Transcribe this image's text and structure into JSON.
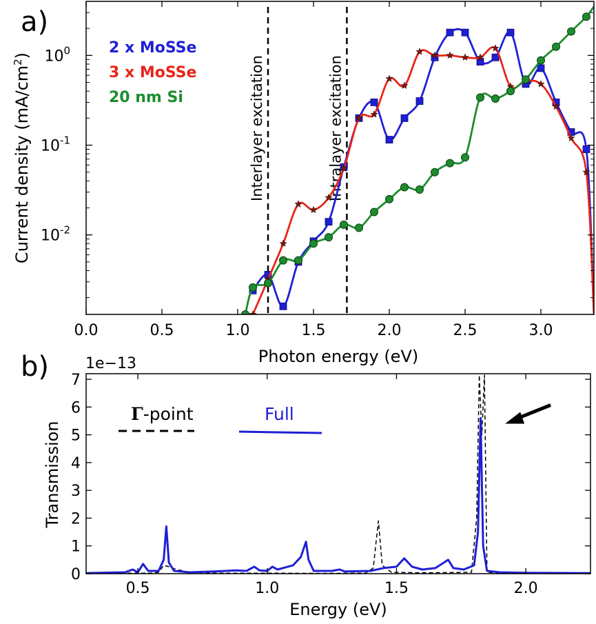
{
  "chart_data": [
    {
      "panel": "a)",
      "type": "line",
      "xlabel": "Photon energy (eV)",
      "ylabel": "Current density (mA/cm",
      "ylabel_sup": "2",
      "ylabel_end": ")",
      "xlim": [
        0.0,
        3.35
      ],
      "ylim": [
        0.0013,
        4.0
      ],
      "yscale": "log",
      "x_ticks": [
        "0.0",
        "0.5",
        "1.0",
        "1.5",
        "2.0",
        "2.5",
        "3.0"
      ],
      "y_ticks": [
        {
          "value": 0.01,
          "base": "10",
          "exp": "-2"
        },
        {
          "value": 0.1,
          "base": "10",
          "exp": "-1"
        },
        {
          "value": 1,
          "base": "10",
          "exp": "0"
        }
      ],
      "legend_position": "top-left",
      "annotations": [
        {
          "x": 1.2,
          "label": "Interlayer excitation"
        },
        {
          "x": 1.72,
          "label": "Intralayer excitation"
        }
      ],
      "series": [
        {
          "name": "2 x MoSSe",
          "color": "#1f1fd6",
          "marker": "square",
          "points": [
            [
              1.1,
              0.0024
            ],
            [
              1.2,
              0.0036
            ],
            [
              1.3,
              0.0016
            ],
            [
              1.4,
              0.005
            ],
            [
              1.5,
              0.0085
            ],
            [
              1.6,
              0.014
            ],
            [
              1.7,
              0.057
            ],
            [
              1.8,
              0.2
            ],
            [
              1.9,
              0.3
            ],
            [
              2.0,
              0.115
            ],
            [
              2.1,
              0.2
            ],
            [
              2.2,
              0.31
            ],
            [
              2.3,
              0.95
            ],
            [
              2.4,
              1.8
            ],
            [
              2.5,
              1.8
            ],
            [
              2.6,
              0.85
            ],
            [
              2.7,
              0.95
            ],
            [
              2.8,
              1.8
            ],
            [
              2.9,
              0.48
            ],
            [
              3.0,
              0.72
            ],
            [
              3.1,
              0.3
            ],
            [
              3.2,
              0.14
            ],
            [
              3.3,
              0.09
            ],
            [
              3.35,
              0.0013
            ]
          ]
        },
        {
          "name": "3 x MoSSe",
          "color": "#e8251a",
          "marker": "star",
          "points": [
            [
              1.1,
              0.0013
            ],
            [
              1.2,
              0.0032
            ],
            [
              1.3,
              0.008
            ],
            [
              1.4,
              0.022
            ],
            [
              1.5,
              0.019
            ],
            [
              1.6,
              0.026
            ],
            [
              1.7,
              0.055
            ],
            [
              1.8,
              0.2
            ],
            [
              1.9,
              0.22
            ],
            [
              2.0,
              0.55
            ],
            [
              2.1,
              0.46
            ],
            [
              2.2,
              1.1
            ],
            [
              2.3,
              1.0
            ],
            [
              2.4,
              1.0
            ],
            [
              2.5,
              0.95
            ],
            [
              2.6,
              0.95
            ],
            [
              2.7,
              1.2
            ],
            [
              2.8,
              0.45
            ],
            [
              2.9,
              0.52
            ],
            [
              3.0,
              0.48
            ],
            [
              3.1,
              0.27
            ],
            [
              3.2,
              0.12
            ],
            [
              3.3,
              0.05
            ],
            [
              3.35,
              0.0013
            ]
          ]
        },
        {
          "name": "20 nm Si",
          "color": "#1e8c2e",
          "marker": "circle",
          "points": [
            [
              1.05,
              0.0013
            ],
            [
              1.1,
              0.0026
            ],
            [
              1.2,
              0.0029
            ],
            [
              1.3,
              0.0052
            ],
            [
              1.4,
              0.0052
            ],
            [
              1.5,
              0.008
            ],
            [
              1.6,
              0.0094
            ],
            [
              1.7,
              0.013
            ],
            [
              1.8,
              0.012
            ],
            [
              1.9,
              0.018
            ],
            [
              2.0,
              0.025
            ],
            [
              2.1,
              0.034
            ],
            [
              2.2,
              0.032
            ],
            [
              2.3,
              0.05
            ],
            [
              2.4,
              0.063
            ],
            [
              2.5,
              0.073
            ],
            [
              2.6,
              0.34
            ],
            [
              2.7,
              0.33
            ],
            [
              2.8,
              0.4
            ],
            [
              2.9,
              0.54
            ],
            [
              3.0,
              0.88
            ],
            [
              3.1,
              1.25
            ],
            [
              3.2,
              1.85
            ],
            [
              3.3,
              2.7
            ],
            [
              3.35,
              3.5
            ]
          ]
        }
      ]
    },
    {
      "panel": "b)",
      "type": "line",
      "offset_label": "1e−13",
      "xlabel": "Energy (eV)",
      "ylabel": "Transmission",
      "xlim": [
        0.3,
        2.25
      ],
      "ylim": [
        0,
        7.2
      ],
      "x_ticks": [
        "0.5",
        "1.0",
        "1.5",
        "2.0"
      ],
      "y_ticks": [
        "0",
        "1",
        "2",
        "3",
        "4",
        "5",
        "6",
        "7"
      ],
      "legend_position": "top-left",
      "annotations": [
        {
          "type": "arrow",
          "x": 1.92,
          "y": 5.4
        }
      ],
      "series": [
        {
          "name": "Γ-point",
          "name_bold": "Γ",
          "name_rest": "-point",
          "color": "#000000",
          "style": "dashed",
          "points": [
            [
              0.3,
              0.02
            ],
            [
              0.55,
              0.02
            ],
            [
              0.58,
              0.05
            ],
            [
              0.6,
              0.3
            ],
            [
              0.62,
              0.25
            ],
            [
              0.65,
              0.15
            ],
            [
              0.7,
              0.05
            ],
            [
              0.8,
              0.02
            ],
            [
              1.0,
              0.02
            ],
            [
              1.2,
              0.01
            ],
            [
              1.38,
              0.02
            ],
            [
              1.41,
              0.2
            ],
            [
              1.43,
              1.9
            ],
            [
              1.445,
              0.3
            ],
            [
              1.48,
              0.05
            ],
            [
              1.6,
              0.03
            ],
            [
              1.79,
              0.05
            ],
            [
              1.81,
              2.0
            ],
            [
              1.82,
              7.15
            ],
            [
              1.83,
              5.0
            ],
            [
              1.84,
              7.15
            ],
            [
              1.85,
              0.05
            ],
            [
              1.9,
              0.02
            ],
            [
              2.25,
              0.01
            ]
          ]
        },
        {
          "name": "Full",
          "color": "#1f1fd6",
          "style": "solid",
          "points": [
            [
              0.3,
              0.02
            ],
            [
              0.45,
              0.05
            ],
            [
              0.48,
              0.15
            ],
            [
              0.5,
              0.05
            ],
            [
              0.52,
              0.35
            ],
            [
              0.54,
              0.1
            ],
            [
              0.58,
              0.1
            ],
            [
              0.6,
              0.5
            ],
            [
              0.61,
              1.7
            ],
            [
              0.62,
              0.4
            ],
            [
              0.64,
              0.1
            ],
            [
              0.7,
              0.05
            ],
            [
              0.8,
              0.08
            ],
            [
              0.88,
              0.12
            ],
            [
              0.92,
              0.1
            ],
            [
              0.95,
              0.25
            ],
            [
              0.97,
              0.12
            ],
            [
              1.0,
              0.1
            ],
            [
              1.02,
              0.25
            ],
            [
              1.04,
              0.15
            ],
            [
              1.06,
              0.2
            ],
            [
              1.1,
              0.3
            ],
            [
              1.13,
              0.6
            ],
            [
              1.15,
              1.15
            ],
            [
              1.16,
              0.5
            ],
            [
              1.18,
              0.1
            ],
            [
              1.25,
              0.1
            ],
            [
              1.28,
              0.15
            ],
            [
              1.3,
              0.08
            ],
            [
              1.4,
              0.1
            ],
            [
              1.45,
              0.2
            ],
            [
              1.5,
              0.25
            ],
            [
              1.53,
              0.55
            ],
            [
              1.56,
              0.25
            ],
            [
              1.6,
              0.15
            ],
            [
              1.65,
              0.2
            ],
            [
              1.7,
              0.5
            ],
            [
              1.72,
              0.2
            ],
            [
              1.76,
              0.15
            ],
            [
              1.8,
              0.3
            ],
            [
              1.815,
              1.5
            ],
            [
              1.825,
              5.6
            ],
            [
              1.835,
              1.0
            ],
            [
              1.85,
              0.1
            ],
            [
              1.9,
              0.05
            ],
            [
              2.0,
              0.03
            ],
            [
              2.25,
              0.02
            ]
          ]
        }
      ]
    }
  ]
}
